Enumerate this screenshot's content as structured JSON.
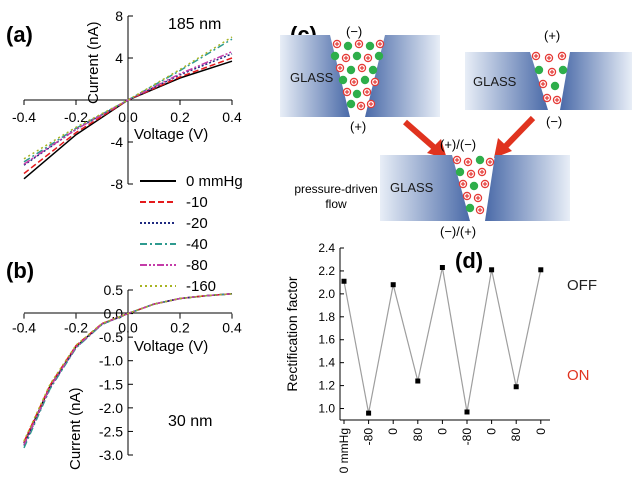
{
  "panels": {
    "a": {
      "label": "(a)",
      "annotation": "185 nm",
      "xlabel": "Voltage (V)",
      "ylabel": "Current (nA)",
      "xticks": [
        "-0.4",
        "-0.2",
        "0.0",
        "0.2",
        "0.4"
      ],
      "yticks": [
        "-8",
        "-4",
        "0",
        "4",
        "8"
      ]
    },
    "b": {
      "label": "(b)",
      "annotation": "30 nm",
      "xlabel": "Voltage (V)",
      "ylabel": "Current (nA)",
      "xticks": [
        "-0.4",
        "-0.2",
        "0.0",
        "0.2",
        "0.4"
      ],
      "yticks": [
        "0.5",
        "0.0",
        "-0.5",
        "-1.0",
        "-1.5",
        "-2.0",
        "-2.5",
        "-3.0"
      ]
    },
    "c": {
      "label": "(c)",
      "glass": "GLASS",
      "left_top": "(−)",
      "left_bottom": "(+)",
      "right_top": "(+)",
      "right_bottom": "(−)",
      "bottom_top": "(+)/(−)",
      "bottom_bottom": "(−)/(+)",
      "flow_line1": "pressure-driven",
      "flow_line2": "flow"
    },
    "d": {
      "label": "(d)",
      "ylabel": "Rectification factor",
      "off_label": "OFF",
      "on_label": "ON",
      "yticks": [
        "1.0",
        "1.2",
        "1.4",
        "1.6",
        "1.8",
        "2.0",
        "2.2",
        "2.4"
      ],
      "xticks": [
        "0 mmHg",
        "-80",
        "0",
        "80",
        "0",
        "-80",
        "0",
        "80",
        "0"
      ]
    }
  },
  "legend": [
    {
      "label": "0 mmHg",
      "color": "#000000",
      "dash": "solid"
    },
    {
      "label": "-10",
      "color": "#e41a1c",
      "dash": "dash"
    },
    {
      "label": "-20",
      "color": "#1f2a80",
      "dash": "dot"
    },
    {
      "label": "-40",
      "color": "#2e9a8f",
      "dash": "dashdot"
    },
    {
      "label": "-80",
      "color": "#c43ca8",
      "dash": "dashdotdot"
    },
    {
      "label": "-160",
      "color": "#a8b423",
      "dash": "shortdot"
    }
  ],
  "colors": {
    "glass_dark": "#4a6aa8",
    "glass_light": "#e6ecf6",
    "arrow": "#e0331f",
    "cation": "#e53935",
    "anion": "#2eae4b",
    "on_label": "#e0331f",
    "d_line": "#9e9e9e"
  },
  "chart_data": [
    {
      "type": "line",
      "title": "",
      "annotation": "185 nm",
      "xlabel": "Voltage (V)",
      "ylabel": "Current (nA)",
      "xlim": [
        -0.4,
        0.4
      ],
      "ylim": [
        -8,
        8
      ],
      "x": [
        -0.4,
        -0.2,
        0,
        0.2,
        0.4
      ],
      "series": [
        {
          "name": "0 mmHg",
          "values": [
            -7.5,
            -3.3,
            0,
            2.1,
            3.7
          ]
        },
        {
          "name": "-10",
          "values": [
            -7.0,
            -3.1,
            0,
            2.2,
            4.0
          ]
        },
        {
          "name": "-20",
          "values": [
            -6.2,
            -2.8,
            0,
            2.4,
            4.4
          ]
        },
        {
          "name": "-40",
          "values": [
            -5.9,
            -2.7,
            0,
            2.8,
            5.8
          ]
        },
        {
          "name": "-80",
          "values": [
            -6.1,
            -2.8,
            0,
            2.5,
            4.6
          ]
        },
        {
          "name": "-160",
          "values": [
            -5.6,
            -2.6,
            0,
            2.9,
            6.0
          ]
        }
      ]
    },
    {
      "type": "line",
      "title": "",
      "annotation": "30 nm",
      "xlabel": "Voltage (V)",
      "ylabel": "Current (nA)",
      "xlim": [
        -0.4,
        0.4
      ],
      "ylim": [
        -3.0,
        0.5
      ],
      "x": [
        -0.4,
        -0.3,
        -0.2,
        -0.1,
        0,
        0.1,
        0.2,
        0.3,
        0.4
      ],
      "series": [
        {
          "name": "0 mmHg",
          "values": [
            -2.75,
            -1.55,
            -0.7,
            -0.22,
            0,
            0.2,
            0.32,
            0.38,
            0.42
          ]
        },
        {
          "name": "-10",
          "values": [
            -2.72,
            -1.52,
            -0.68,
            -0.21,
            0,
            0.2,
            0.32,
            0.38,
            0.42
          ]
        },
        {
          "name": "-20",
          "values": [
            -2.8,
            -1.58,
            -0.72,
            -0.23,
            0,
            0.2,
            0.32,
            0.38,
            0.42
          ]
        },
        {
          "name": "-40",
          "values": [
            -2.85,
            -1.6,
            -0.73,
            -0.23,
            0,
            0.2,
            0.32,
            0.38,
            0.42
          ]
        },
        {
          "name": "-80",
          "values": [
            -2.78,
            -1.56,
            -0.71,
            -0.22,
            0,
            0.2,
            0.32,
            0.38,
            0.42
          ]
        },
        {
          "name": "-160",
          "values": [
            -2.7,
            -1.5,
            -0.67,
            -0.21,
            0,
            0.2,
            0.32,
            0.38,
            0.42
          ]
        }
      ]
    },
    {
      "type": "line",
      "title": "",
      "xlabel": "",
      "ylabel": "Rectification factor",
      "ylim": [
        0.9,
        2.4
      ],
      "categories": [
        "0 mmHg",
        "-80",
        "0",
        "80",
        "0",
        "-80",
        "0",
        "80",
        "0"
      ],
      "series": [
        {
          "name": "",
          "values": [
            2.11,
            0.96,
            2.08,
            1.24,
            2.23,
            0.97,
            2.21,
            1.19,
            2.21
          ]
        }
      ]
    }
  ]
}
